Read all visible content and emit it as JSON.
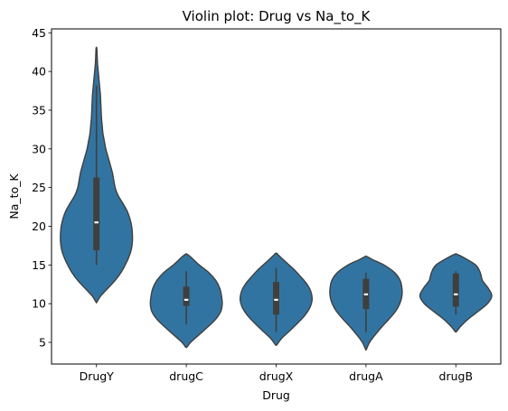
{
  "chart_data": {
    "type": "violin",
    "title": "Violin plot: Drug vs Na_to_K",
    "xlabel": "Drug",
    "ylabel": "Na_to_K",
    "ylim": [
      2.2,
      45.5
    ],
    "yticks": [
      5,
      10,
      15,
      20,
      25,
      30,
      35,
      40,
      45
    ],
    "categories": [
      "DrugY",
      "drugC",
      "drugX",
      "drugA",
      "drugB"
    ],
    "grid": false,
    "colors": {
      "fill": "#3274a1",
      "edge": "#3f3f3f",
      "box": "#3f3f3f",
      "median": "#ffffff"
    },
    "violins": [
      {
        "category": "DrugY",
        "q1": 16.9,
        "median": 20.5,
        "q3": 26.3,
        "whisker_low": 15.0,
        "whisker_high": 38.2,
        "profile": [
          [
            10.2,
            0.01
          ],
          [
            11,
            0.12
          ],
          [
            12,
            0.32
          ],
          [
            13,
            0.52
          ],
          [
            14,
            0.68
          ],
          [
            15,
            0.8
          ],
          [
            16,
            0.9
          ],
          [
            17,
            0.97
          ],
          [
            18,
            1.0
          ],
          [
            19,
            1.0
          ],
          [
            20,
            0.98
          ],
          [
            21,
            0.93
          ],
          [
            22,
            0.85
          ],
          [
            23,
            0.73
          ],
          [
            24,
            0.6
          ],
          [
            25,
            0.52
          ],
          [
            26,
            0.48
          ],
          [
            27,
            0.44
          ],
          [
            28,
            0.38
          ],
          [
            29,
            0.32
          ],
          [
            30,
            0.26
          ],
          [
            31,
            0.22
          ],
          [
            32,
            0.18
          ],
          [
            33,
            0.16
          ],
          [
            34,
            0.14
          ],
          [
            35,
            0.13
          ],
          [
            36,
            0.12
          ],
          [
            37,
            0.11
          ],
          [
            38,
            0.09
          ],
          [
            39,
            0.07
          ],
          [
            40,
            0.05
          ],
          [
            41,
            0.03
          ],
          [
            42,
            0.02
          ],
          [
            43,
            0.01
          ]
        ]
      },
      {
        "category": "drugC",
        "q1": 9.7,
        "median": 10.5,
        "q3": 12.2,
        "whisker_low": 7.3,
        "whisker_high": 14.2,
        "profile": [
          [
            4.4,
            0.02
          ],
          [
            5,
            0.12
          ],
          [
            6,
            0.36
          ],
          [
            7,
            0.6
          ],
          [
            8,
            0.82
          ],
          [
            9,
            0.96
          ],
          [
            10,
            1.0
          ],
          [
            11,
            0.98
          ],
          [
            12,
            0.93
          ],
          [
            13,
            0.82
          ],
          [
            14,
            0.63
          ],
          [
            15,
            0.36
          ],
          [
            16,
            0.13
          ],
          [
            16.4,
            0.02
          ]
        ]
      },
      {
        "category": "drugX",
        "q1": 8.6,
        "median": 10.5,
        "q3": 12.8,
        "whisker_low": 6.3,
        "whisker_high": 14.6,
        "profile": [
          [
            4.7,
            0.02
          ],
          [
            5.5,
            0.15
          ],
          [
            6.5,
            0.38
          ],
          [
            7.5,
            0.6
          ],
          [
            8.5,
            0.8
          ],
          [
            9.5,
            0.94
          ],
          [
            10.5,
            1.0
          ],
          [
            11.5,
            0.97
          ],
          [
            12.5,
            0.86
          ],
          [
            13.5,
            0.68
          ],
          [
            14.5,
            0.48
          ],
          [
            15.5,
            0.24
          ],
          [
            16.2,
            0.08
          ],
          [
            16.5,
            0.02
          ]
        ]
      },
      {
        "category": "drugA",
        "q1": 9.3,
        "median": 11.2,
        "q3": 13.2,
        "whisker_low": 6.3,
        "whisker_high": 14.0,
        "profile": [
          [
            4.1,
            0.01
          ],
          [
            5,
            0.1
          ],
          [
            6,
            0.26
          ],
          [
            7,
            0.44
          ],
          [
            8,
            0.64
          ],
          [
            9,
            0.82
          ],
          [
            10,
            0.94
          ],
          [
            11,
            1.0
          ],
          [
            12,
            1.0
          ],
          [
            13,
            0.95
          ],
          [
            14,
            0.8
          ],
          [
            15,
            0.5
          ],
          [
            15.7,
            0.18
          ],
          [
            16.1,
            0.02
          ]
        ]
      },
      {
        "category": "drugB",
        "q1": 9.6,
        "median": 11.2,
        "q3": 13.9,
        "whisker_low": 8.6,
        "whisker_high": 14.2,
        "profile": [
          [
            6.4,
            0.02
          ],
          [
            7,
            0.12
          ],
          [
            8,
            0.34
          ],
          [
            9,
            0.62
          ],
          [
            10,
            0.88
          ],
          [
            11,
            1.0
          ],
          [
            12,
            0.9
          ],
          [
            13,
            0.74
          ],
          [
            14,
            0.68
          ],
          [
            15,
            0.55
          ],
          [
            16,
            0.2
          ],
          [
            16.4,
            0.02
          ]
        ]
      }
    ]
  }
}
